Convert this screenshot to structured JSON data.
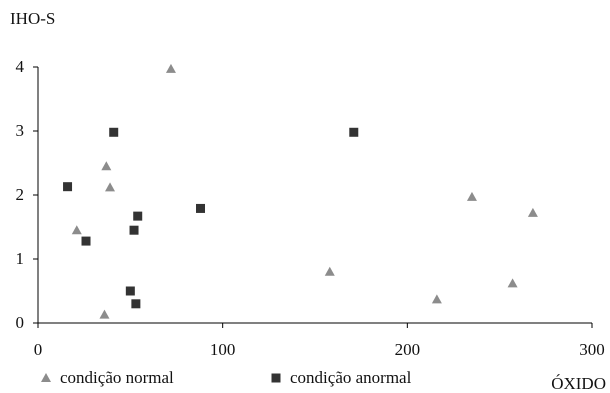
{
  "chart_data": {
    "type": "scatter",
    "title": "",
    "xlabel": "ÓXIDO",
    "ylabel": "IHO-S",
    "xlim": [
      0,
      300
    ],
    "ylim": [
      0,
      4
    ],
    "x_ticks": [
      "0",
      "100",
      "200",
      "300"
    ],
    "y_ticks": [
      "0",
      "1",
      "2",
      "3",
      "4"
    ],
    "grid": false,
    "legend_position": "bottom",
    "series": [
      {
        "name": "condição normal",
        "marker": "triangle",
        "color": "#8c8c8c",
        "points": [
          {
            "x": 72,
            "y": 3.97
          },
          {
            "x": 37,
            "y": 2.45
          },
          {
            "x": 39,
            "y": 2.12
          },
          {
            "x": 21,
            "y": 1.45
          },
          {
            "x": 36,
            "y": 0.13
          },
          {
            "x": 158,
            "y": 0.8
          },
          {
            "x": 216,
            "y": 0.37
          },
          {
            "x": 235,
            "y": 1.97
          },
          {
            "x": 257,
            "y": 0.62
          },
          {
            "x": 268,
            "y": 1.72
          }
        ]
      },
      {
        "name": "condição anormal",
        "marker": "square",
        "color": "#333333",
        "points": [
          {
            "x": 41,
            "y": 2.98
          },
          {
            "x": 171,
            "y": 2.98
          },
          {
            "x": 16,
            "y": 2.13
          },
          {
            "x": 88,
            "y": 1.79
          },
          {
            "x": 54,
            "y": 1.67
          },
          {
            "x": 52,
            "y": 1.45
          },
          {
            "x": 26,
            "y": 1.28
          },
          {
            "x": 50,
            "y": 0.5
          },
          {
            "x": 53,
            "y": 0.3
          }
        ]
      }
    ]
  }
}
